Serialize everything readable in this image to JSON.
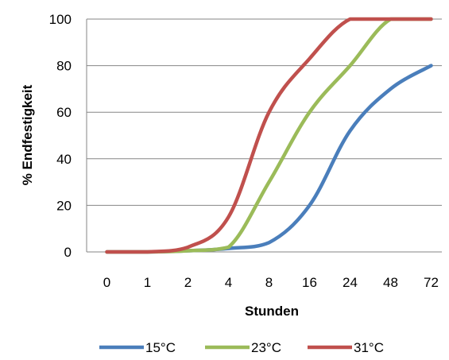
{
  "chart_data": {
    "type": "line",
    "x": [
      "0",
      "1",
      "2",
      "4",
      "8",
      "16",
      "24",
      "48",
      "72"
    ],
    "xlabel": "Stunden",
    "ylabel": "% Endfestigkeit",
    "ylim": [
      0,
      100
    ],
    "yticks": [
      0,
      20,
      40,
      60,
      80,
      100
    ],
    "grid": "horizontal",
    "legend_position": "bottom",
    "series": [
      {
        "name": "15°C",
        "color": "#4a7ebb",
        "values": [
          0,
          0,
          0.5,
          1.5,
          4,
          20,
          52,
          70,
          80
        ]
      },
      {
        "name": "23°C",
        "color": "#9bbb59",
        "values": [
          0,
          0,
          0.5,
          2,
          30,
          60,
          80,
          100,
          100
        ]
      },
      {
        "name": "31°C",
        "color": "#c0504d",
        "values": [
          0,
          0,
          2,
          15,
          60,
          83,
          100,
          100,
          100
        ]
      }
    ]
  }
}
